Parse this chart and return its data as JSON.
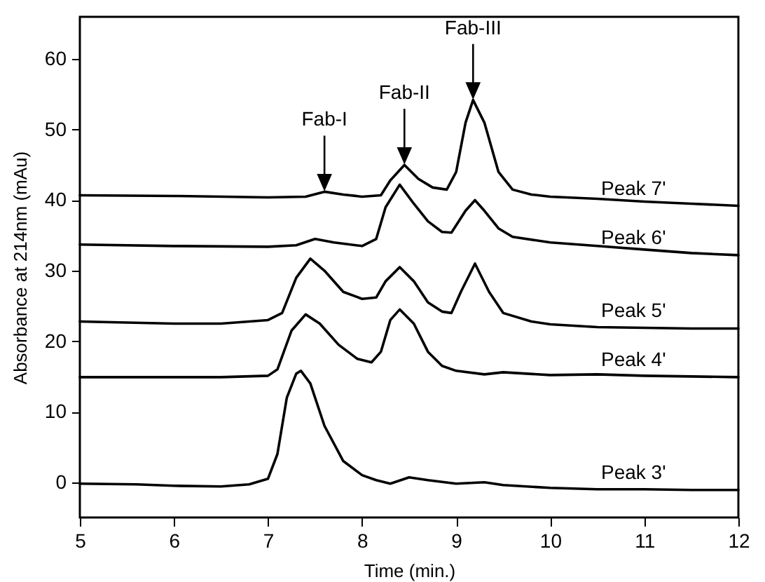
{
  "chart_data": {
    "type": "line",
    "xlabel": "Time (min.)",
    "ylabel": "Absorbance at 214nm (mAu)",
    "xlim": [
      5,
      12
    ],
    "xticks": [
      5,
      6,
      7,
      8,
      9,
      10,
      11,
      12
    ],
    "ylim": [
      -5,
      66
    ],
    "yticks": [
      0,
      10,
      20,
      30,
      40,
      50,
      60
    ],
    "grid": false,
    "legend": false,
    "marker": "none",
    "line_style": "solid",
    "annotations": [
      {
        "text": "Fab-I",
        "x": 7.6,
        "y": 41.2
      },
      {
        "text": "Fab-II",
        "x": 8.45,
        "y": 45
      },
      {
        "text": "Fab-III",
        "x": 9.18,
        "y": 54.2
      }
    ],
    "series": [
      {
        "name": "Peak 7'",
        "color": "#000000",
        "x": [
          5,
          6,
          7,
          7.4,
          7.6,
          7.8,
          8.0,
          8.2,
          8.3,
          8.45,
          8.6,
          8.75,
          8.9,
          9.0,
          9.1,
          9.18,
          9.3,
          9.45,
          9.6,
          9.8,
          10,
          10.5,
          11,
          11.5,
          12
        ],
        "values": [
          40.7,
          40.6,
          40.4,
          40.5,
          41.2,
          40.8,
          40.5,
          40.7,
          42.8,
          45,
          43,
          41.8,
          41.5,
          44,
          51,
          54.2,
          51,
          44,
          41.5,
          40.8,
          40.5,
          40.2,
          39.8,
          39.5,
          39.2
        ]
      },
      {
        "name": "Peak 6'",
        "color": "#000000",
        "x": [
          5,
          6,
          7,
          7.3,
          7.5,
          7.7,
          8.0,
          8.15,
          8.25,
          8.4,
          8.55,
          8.7,
          8.85,
          8.95,
          9.1,
          9.2,
          9.3,
          9.45,
          9.6,
          10,
          10.5,
          11,
          11.5,
          12
        ],
        "values": [
          33.7,
          33.5,
          33.4,
          33.6,
          34.5,
          34,
          33.5,
          34.5,
          39,
          42.2,
          39.5,
          37,
          35.5,
          35.4,
          38.5,
          40,
          38.5,
          36,
          34.8,
          34,
          33.5,
          33,
          32.5,
          32.2
        ]
      },
      {
        "name": "Peak 5'",
        "color": "#000000",
        "x": [
          5,
          6,
          6.5,
          7,
          7.15,
          7.3,
          7.45,
          7.6,
          7.8,
          8.0,
          8.15,
          8.25,
          8.4,
          8.55,
          8.7,
          8.85,
          8.95,
          9.05,
          9.2,
          9.35,
          9.5,
          9.8,
          10,
          10.5,
          11,
          11.5,
          12
        ],
        "values": [
          22.8,
          22.5,
          22.5,
          23,
          24,
          29,
          31.7,
          30,
          27,
          26,
          26.2,
          28.5,
          30.5,
          28.5,
          25.5,
          24.2,
          24,
          27,
          31,
          27,
          24,
          22.8,
          22.4,
          22,
          21.9,
          21.8,
          21.8
        ]
      },
      {
        "name": "Peak 4'",
        "color": "#000000",
        "x": [
          5,
          6,
          6.5,
          7,
          7.1,
          7.25,
          7.4,
          7.55,
          7.75,
          7.95,
          8.1,
          8.2,
          8.3,
          8.4,
          8.55,
          8.7,
          8.85,
          9.0,
          9.3,
          9.5,
          10,
          10.5,
          11,
          11.5,
          12
        ],
        "values": [
          14.9,
          14.9,
          14.9,
          15.1,
          16,
          21.5,
          23.8,
          22.5,
          19.5,
          17.5,
          17,
          18.5,
          23,
          24.5,
          22.5,
          18.5,
          16.5,
          15.8,
          15.3,
          15.6,
          15.2,
          15.3,
          15.1,
          15,
          14.9
        ]
      },
      {
        "name": "Peak 3'",
        "color": "#000000",
        "x": [
          5,
          5.6,
          6,
          6.5,
          6.8,
          7.0,
          7.1,
          7.2,
          7.3,
          7.35,
          7.45,
          7.6,
          7.8,
          8.0,
          8.15,
          8.3,
          8.5,
          8.7,
          9.0,
          9.3,
          9.5,
          10,
          10.5,
          11,
          11.5,
          12
        ],
        "values": [
          -0.2,
          -0.3,
          -0.5,
          -0.6,
          -0.3,
          0.5,
          4,
          12,
          15.4,
          15.8,
          14,
          8,
          3,
          1,
          0.3,
          -0.2,
          0.7,
          0.3,
          -0.2,
          0,
          -0.4,
          -0.8,
          -1,
          -1,
          -1.1,
          -1.1
        ]
      }
    ]
  }
}
